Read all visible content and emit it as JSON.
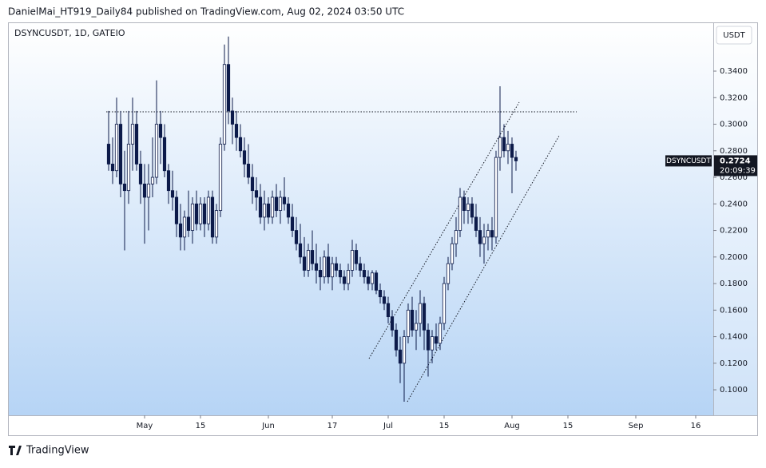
{
  "header": {
    "publisher": "DanielMai_HT919_Daily84 published on TradingView.com, Aug 02, 2024 03:50 UTC"
  },
  "footer": {
    "logo": "TradingView"
  },
  "chart_data": {
    "type": "candlestick",
    "title": "DSYNCUSDT, 1D, GATEIO",
    "currency": "USDT",
    "symbol": "DSYNCUSDT",
    "last_price": 0.2724,
    "countdown": "20:09:39",
    "up_color": "#ffffff",
    "down_color": "#0d1b4a",
    "xlim": [
      -34,
      142.4
    ],
    "xticks": [
      {
        "value": 0,
        "label": "May"
      },
      {
        "value": 14,
        "label": "15"
      },
      {
        "value": 31,
        "label": "Jun"
      },
      {
        "value": 47,
        "label": "17"
      },
      {
        "value": 61,
        "label": "Jul"
      },
      {
        "value": 75,
        "label": "15"
      },
      {
        "value": 92,
        "label": "Aug"
      },
      {
        "value": 106,
        "label": "15"
      },
      {
        "value": 123,
        "label": "Sep"
      },
      {
        "value": 138,
        "label": "16"
      }
    ],
    "ylim": [
      0.0808,
      0.3767
    ],
    "yticks": [
      {
        "value": 0.1,
        "label": "0.1000"
      },
      {
        "value": 0.12,
        "label": "0.1200"
      },
      {
        "value": 0.14,
        "label": "0.1400"
      },
      {
        "value": 0.16,
        "label": "0.1600"
      },
      {
        "value": 0.18,
        "label": "0.1800"
      },
      {
        "value": 0.2,
        "label": "0.2000"
      },
      {
        "value": 0.22,
        "label": "0.2200"
      },
      {
        "value": 0.24,
        "label": "0.2400"
      },
      {
        "value": 0.26,
        "label": "0.2600"
      },
      {
        "value": 0.28,
        "label": "0.2800"
      },
      {
        "value": 0.3,
        "label": "0.3000"
      },
      {
        "value": 0.32,
        "label": "0.3200"
      },
      {
        "value": 0.34,
        "label": "0.3400"
      }
    ],
    "x": [
      -9,
      -8,
      -7,
      -6,
      -5,
      -4,
      -3,
      -2,
      -1,
      0,
      1,
      2,
      3,
      4,
      5,
      6,
      7,
      8,
      9,
      10,
      11,
      12,
      13,
      14,
      15,
      16,
      17,
      18,
      19,
      20,
      21,
      22,
      23,
      24,
      25,
      26,
      27,
      28,
      29,
      30,
      31,
      32,
      33,
      34,
      35,
      36,
      37,
      38,
      39,
      40,
      41,
      42,
      43,
      44,
      45,
      46,
      47,
      48,
      49,
      50,
      51,
      52,
      53,
      54,
      55,
      56,
      57,
      58,
      59,
      60,
      61,
      62,
      63,
      64,
      65,
      66,
      67,
      68,
      69,
      70,
      71,
      72,
      73,
      74,
      75,
      76,
      77,
      78,
      79,
      80,
      81,
      82,
      83,
      84,
      85,
      86,
      87,
      88,
      89,
      90,
      91,
      92,
      93
    ],
    "candles": [
      [
        0.285,
        0.31,
        0.265,
        0.27
      ],
      [
        0.27,
        0.29,
        0.255,
        0.265
      ],
      [
        0.265,
        0.32,
        0.26,
        0.3
      ],
      [
        0.3,
        0.31,
        0.245,
        0.255
      ],
      [
        0.255,
        0.28,
        0.205,
        0.25
      ],
      [
        0.25,
        0.31,
        0.24,
        0.285
      ],
      [
        0.285,
        0.32,
        0.265,
        0.3
      ],
      [
        0.3,
        0.31,
        0.265,
        0.27
      ],
      [
        0.27,
        0.28,
        0.24,
        0.255
      ],
      [
        0.255,
        0.27,
        0.21,
        0.245
      ],
      [
        0.245,
        0.27,
        0.22,
        0.255
      ],
      [
        0.255,
        0.29,
        0.245,
        0.26
      ],
      [
        0.26,
        0.333,
        0.255,
        0.3
      ],
      [
        0.3,
        0.31,
        0.27,
        0.29
      ],
      [
        0.29,
        0.3,
        0.26,
        0.265
      ],
      [
        0.265,
        0.27,
        0.24,
        0.25
      ],
      [
        0.25,
        0.265,
        0.235,
        0.245
      ],
      [
        0.245,
        0.25,
        0.215,
        0.225
      ],
      [
        0.225,
        0.24,
        0.205,
        0.215
      ],
      [
        0.215,
        0.235,
        0.205,
        0.23
      ],
      [
        0.23,
        0.25,
        0.215,
        0.22
      ],
      [
        0.22,
        0.245,
        0.21,
        0.24
      ],
      [
        0.24,
        0.25,
        0.22,
        0.225
      ],
      [
        0.225,
        0.245,
        0.22,
        0.24
      ],
      [
        0.24,
        0.245,
        0.215,
        0.225
      ],
      [
        0.225,
        0.25,
        0.22,
        0.245
      ],
      [
        0.245,
        0.25,
        0.21,
        0.215
      ],
      [
        0.215,
        0.24,
        0.21,
        0.235
      ],
      [
        0.235,
        0.29,
        0.23,
        0.285
      ],
      [
        0.285,
        0.36,
        0.28,
        0.345
      ],
      [
        0.345,
        0.366,
        0.3,
        0.31
      ],
      [
        0.31,
        0.32,
        0.285,
        0.3
      ],
      [
        0.3,
        0.31,
        0.28,
        0.29
      ],
      [
        0.29,
        0.3,
        0.275,
        0.28
      ],
      [
        0.28,
        0.29,
        0.26,
        0.27
      ],
      [
        0.27,
        0.285,
        0.255,
        0.26
      ],
      [
        0.26,
        0.27,
        0.24,
        0.25
      ],
      [
        0.25,
        0.26,
        0.235,
        0.245
      ],
      [
        0.245,
        0.255,
        0.225,
        0.23
      ],
      [
        0.23,
        0.25,
        0.22,
        0.24
      ],
      [
        0.24,
        0.245,
        0.225,
        0.23
      ],
      [
        0.23,
        0.25,
        0.225,
        0.245
      ],
      [
        0.245,
        0.255,
        0.23,
        0.235
      ],
      [
        0.235,
        0.25,
        0.225,
        0.245
      ],
      [
        0.245,
        0.26,
        0.235,
        0.24
      ],
      [
        0.24,
        0.245,
        0.225,
        0.23
      ],
      [
        0.23,
        0.24,
        0.215,
        0.22
      ],
      [
        0.22,
        0.23,
        0.205,
        0.21
      ],
      [
        0.21,
        0.225,
        0.195,
        0.2
      ],
      [
        0.2,
        0.215,
        0.185,
        0.19
      ],
      [
        0.19,
        0.21,
        0.185,
        0.205
      ],
      [
        0.205,
        0.22,
        0.19,
        0.195
      ],
      [
        0.195,
        0.21,
        0.18,
        0.19
      ],
      [
        0.19,
        0.2,
        0.175,
        0.185
      ],
      [
        0.185,
        0.205,
        0.18,
        0.2
      ],
      [
        0.2,
        0.21,
        0.18,
        0.185
      ],
      [
        0.185,
        0.2,
        0.175,
        0.195
      ],
      [
        0.195,
        0.2,
        0.185,
        0.19
      ],
      [
        0.19,
        0.195,
        0.18,
        0.185
      ],
      [
        0.185,
        0.19,
        0.175,
        0.18
      ],
      [
        0.18,
        0.195,
        0.175,
        0.19
      ],
      [
        0.19,
        0.213,
        0.185,
        0.205
      ],
      [
        0.205,
        0.21,
        0.19,
        0.195
      ],
      [
        0.195,
        0.2,
        0.185,
        0.19
      ],
      [
        0.19,
        0.195,
        0.18,
        0.185
      ],
      [
        0.185,
        0.19,
        0.175,
        0.18
      ],
      [
        0.18,
        0.19,
        0.175,
        0.188
      ],
      [
        0.188,
        0.19,
        0.172,
        0.175
      ],
      [
        0.175,
        0.18,
        0.165,
        0.17
      ],
      [
        0.17,
        0.175,
        0.16,
        0.165
      ],
      [
        0.165,
        0.17,
        0.15,
        0.155
      ],
      [
        0.155,
        0.16,
        0.14,
        0.145
      ],
      [
        0.145,
        0.15,
        0.125,
        0.13
      ],
      [
        0.13,
        0.14,
        0.105,
        0.12
      ],
      [
        0.12,
        0.145,
        0.091,
        0.14
      ],
      [
        0.14,
        0.165,
        0.135,
        0.16
      ],
      [
        0.16,
        0.17,
        0.14,
        0.145
      ],
      [
        0.145,
        0.16,
        0.13,
        0.15
      ],
      [
        0.15,
        0.175,
        0.14,
        0.165
      ],
      [
        0.165,
        0.17,
        0.13,
        0.145
      ],
      [
        0.145,
        0.15,
        0.11,
        0.13
      ],
      [
        0.13,
        0.145,
        0.12,
        0.14
      ],
      [
        0.14,
        0.15,
        0.13,
        0.135
      ],
      [
        0.135,
        0.155,
        0.13,
        0.15
      ],
      [
        0.15,
        0.185,
        0.145,
        0.18
      ],
      [
        0.18,
        0.2,
        0.175,
        0.195
      ],
      [
        0.195,
        0.215,
        0.19,
        0.21
      ],
      [
        0.21,
        0.23,
        0.2,
        0.22
      ],
      [
        0.22,
        0.252,
        0.215,
        0.245
      ],
      [
        0.245,
        0.25,
        0.225,
        0.235
      ],
      [
        0.235,
        0.245,
        0.225,
        0.24
      ],
      [
        0.24,
        0.245,
        0.225,
        0.23
      ],
      [
        0.23,
        0.24,
        0.215,
        0.22
      ],
      [
        0.22,
        0.23,
        0.2,
        0.21
      ],
      [
        0.21,
        0.225,
        0.195,
        0.215
      ],
      [
        0.215,
        0.225,
        0.205,
        0.22
      ],
      [
        0.22,
        0.23,
        0.205,
        0.215
      ],
      [
        0.215,
        0.28,
        0.21,
        0.275
      ],
      [
        0.275,
        0.3286,
        0.265,
        0.29
      ],
      [
        0.29,
        0.3,
        0.275,
        0.28
      ],
      [
        0.28,
        0.295,
        0.27,
        0.285
      ],
      [
        0.285,
        0.29,
        0.248,
        0.275
      ],
      [
        0.275,
        0.28,
        0.265,
        0.2724
      ]
    ]
  }
}
